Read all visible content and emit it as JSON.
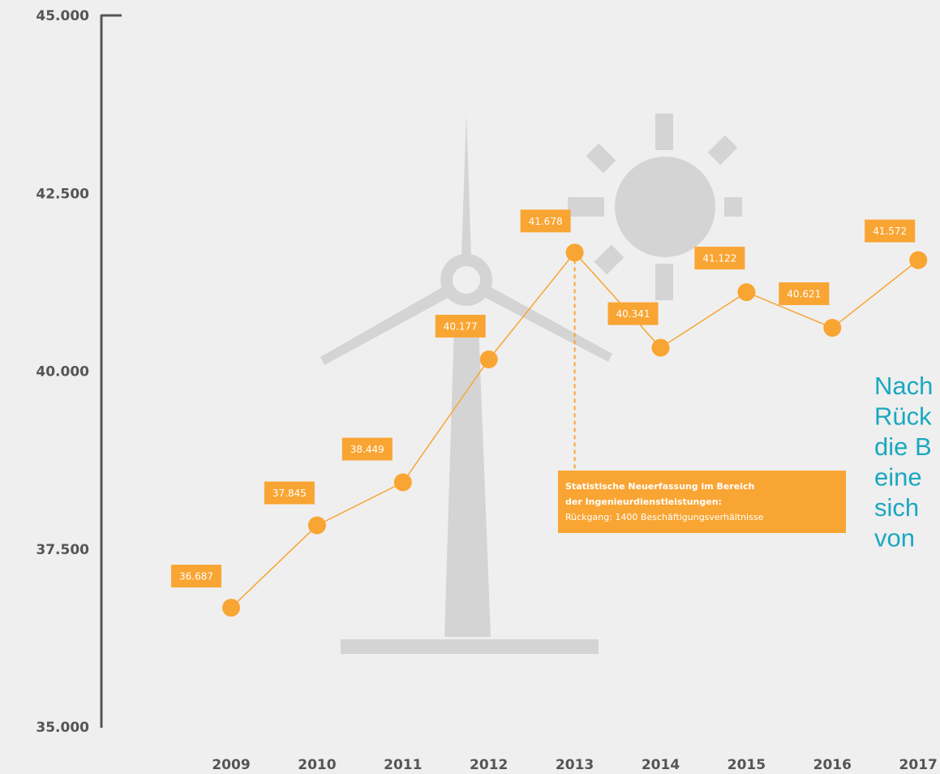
{
  "chart_data": {
    "type": "line",
    "categories": [
      "2009",
      "2010",
      "2011",
      "2012",
      "2013",
      "2014",
      "2015",
      "2016",
      "2017"
    ],
    "series": [
      {
        "color": "#f9a533",
        "values": [
          36687,
          37845,
          38449,
          40177,
          41678,
          40341,
          41122,
          40621,
          41572
        ],
        "value_labels": [
          "36.687",
          "37.845",
          "38.449",
          "40.177",
          "41.678",
          "40.341",
          "41.122",
          "40.621",
          "41.572"
        ]
      }
    ],
    "ylim": [
      35000,
      45000
    ],
    "yticks": [
      {
        "value": 35000,
        "label": "35.000"
      },
      {
        "value": 37500,
        "label": "37.500"
      },
      {
        "value": 40000,
        "label": "40.000"
      },
      {
        "value": 42500,
        "label": "42.500"
      },
      {
        "value": 45000,
        "label": "45.000"
      }
    ],
    "annotation": [
      "Statistische Neuerfassung im Bereich",
      "der Ingenieurdienstleistungen:",
      "Rückgang: 1400 Beschäftigungsverhältnisse"
    ],
    "side_text": [
      "Nach",
      "Rück",
      "die B",
      "eine",
      "sich",
      "von"
    ]
  }
}
